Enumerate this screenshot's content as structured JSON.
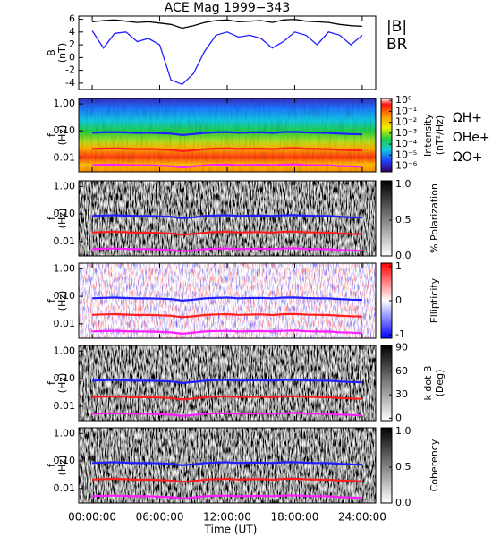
{
  "chart_data": [
    {
      "type": "line",
      "title": "ACE Mag 1999−343",
      "y_label": [
        "B",
        "(nT)"
      ],
      "x_label": "Time (UT)",
      "x": [
        0,
        1,
        2,
        3,
        4,
        5,
        6,
        7,
        8,
        9,
        10,
        11,
        12,
        13,
        14,
        15,
        16,
        17,
        18,
        19,
        20,
        21,
        22,
        23,
        24
      ],
      "xlim": [
        -1.2,
        25.2
      ],
      "xticks": [
        {
          "value": 0,
          "label": "00:00:00"
        },
        {
          "value": 6,
          "label": "06:00:00"
        },
        {
          "value": 12,
          "label": "12:00:00"
        },
        {
          "value": 18,
          "label": "18:00:00"
        },
        {
          "value": 24,
          "label": "24:00:00"
        }
      ],
      "ylim": [
        -5,
        6.5
      ],
      "yticks": [
        -4,
        -2,
        0,
        2,
        4,
        6
      ],
      "series": [
        {
          "name": "|B|",
          "color": "#000000",
          "values": [
            5.6,
            5.8,
            5.9,
            5.7,
            5.5,
            5.6,
            5.4,
            5.2,
            4.6,
            5.0,
            5.5,
            5.8,
            5.9,
            5.6,
            5.7,
            5.8,
            5.5,
            5.9,
            6.0,
            5.7,
            5.6,
            5.5,
            5.2,
            5.0,
            4.9
          ]
        },
        {
          "name": "BR",
          "color": "#1f1fff",
          "values": [
            4.2,
            1.5,
            3.8,
            4.0,
            2.5,
            3.0,
            2.0,
            -3.5,
            -4.2,
            -2.5,
            1.0,
            3.5,
            4.0,
            3.2,
            3.5,
            3.0,
            1.5,
            2.5,
            4.0,
            3.5,
            2.0,
            4.0,
            3.5,
            2.0,
            3.5
          ]
        }
      ]
    },
    {
      "type": "spectrogram",
      "y_label": [
        "f",
        "(Hz)"
      ],
      "log_y": true,
      "ylim": [
        0.003,
        1.6
      ],
      "yticks": [
        {
          "value": 1,
          "label": "1.00"
        },
        {
          "value": 0.1,
          "label": "0.10"
        },
        {
          "value": 0.01,
          "label": "0.01"
        }
      ],
      "colormap": "rainbow",
      "colorbar": {
        "label": [
          "Intensity",
          "(nT²/Hz)"
        ],
        "log": true,
        "lim": [
          3e-07,
          1.5
        ],
        "ticks": [
          {
            "value": 1,
            "label": "10⁰"
          },
          {
            "value": 0.1,
            "label": "10⁻¹"
          },
          {
            "value": 0.01,
            "label": "10⁻²"
          },
          {
            "value": 0.001,
            "label": "10⁻³"
          },
          {
            "value": 0.0001,
            "label": "10⁻⁴"
          },
          {
            "value": 1e-05,
            "label": "10⁻⁵"
          },
          {
            "value": 1e-06,
            "label": "10⁻⁶"
          }
        ]
      },
      "series": [
        {
          "name": "ΩH+",
          "color": "#1f1fff",
          "values": [
            0.085,
            0.088,
            0.09,
            0.087,
            0.084,
            0.085,
            0.082,
            0.079,
            0.07,
            0.076,
            0.084,
            0.088,
            0.09,
            0.085,
            0.087,
            0.088,
            0.084,
            0.09,
            0.091,
            0.087,
            0.085,
            0.084,
            0.079,
            0.076,
            0.074
          ]
        },
        {
          "name": "ΩHe+",
          "color": "#ff1f1f",
          "values": [
            0.0213,
            0.022,
            0.0225,
            0.0218,
            0.021,
            0.0213,
            0.0205,
            0.0198,
            0.0175,
            0.019,
            0.021,
            0.022,
            0.0225,
            0.0213,
            0.0218,
            0.022,
            0.021,
            0.0225,
            0.0228,
            0.0218,
            0.0213,
            0.021,
            0.0198,
            0.019,
            0.0185
          ]
        },
        {
          "name": "ΩO+",
          "color": "#ff1fff",
          "values": [
            0.0053,
            0.0055,
            0.0056,
            0.0054,
            0.0053,
            0.0053,
            0.0051,
            0.0049,
            0.0044,
            0.0048,
            0.0053,
            0.0055,
            0.0056,
            0.0053,
            0.0054,
            0.0055,
            0.0053,
            0.0056,
            0.0057,
            0.0054,
            0.0053,
            0.0053,
            0.0049,
            0.0048,
            0.0046
          ]
        }
      ]
    },
    {
      "type": "spectrogram",
      "y_label": [
        "f",
        "(Hz)"
      ],
      "log_y": true,
      "ylim": [
        0.003,
        1.6
      ],
      "yticks": [
        {
          "value": 1,
          "label": "1.00"
        },
        {
          "value": 0.1,
          "label": "0.10"
        },
        {
          "value": 0.01,
          "label": "0.01"
        }
      ],
      "colormap": "gray",
      "colorbar": {
        "label": [
          "% Polarization"
        ],
        "lim": [
          0,
          1.05
        ],
        "ticks": [
          {
            "value": 0,
            "label": "0.0"
          },
          {
            "value": 0.5,
            "label": "0.5"
          },
          {
            "value": 1,
            "label": "1.0"
          }
        ]
      }
    },
    {
      "type": "spectrogram",
      "y_label": [
        "f",
        "(Hz)"
      ],
      "log_y": true,
      "ylim": [
        0.003,
        1.6
      ],
      "yticks": [
        {
          "value": 1,
          "label": "1.00"
        },
        {
          "value": 0.1,
          "label": "0.10"
        },
        {
          "value": 0.01,
          "label": "0.01"
        }
      ],
      "colormap": "bwr",
      "colorbar": {
        "label": [
          "Ellipticity"
        ],
        "lim": [
          -1.1,
          1.1
        ],
        "ticks": [
          -1,
          0,
          1
        ]
      }
    },
    {
      "type": "spectrogram",
      "y_label": [
        "f",
        "(Hz)"
      ],
      "log_y": true,
      "ylim": [
        0.003,
        1.6
      ],
      "yticks": [
        {
          "value": 1,
          "label": "1.00"
        },
        {
          "value": 0.1,
          "label": "0.10"
        },
        {
          "value": 0.01,
          "label": "0.01"
        }
      ],
      "colormap": "gray",
      "colorbar": {
        "label": [
          "k dot B",
          "(Deg)"
        ],
        "lim": [
          -3,
          93
        ],
        "ticks": [
          0,
          30,
          60,
          90
        ]
      }
    },
    {
      "type": "spectrogram",
      "y_label": [
        "f",
        "(Hz)"
      ],
      "log_y": true,
      "ylim": [
        0.003,
        1.6
      ],
      "yticks": [
        {
          "value": 1,
          "label": "1.00"
        },
        {
          "value": 0.1,
          "label": "0.10"
        },
        {
          "value": 0.01,
          "label": "0.01"
        }
      ],
      "colormap": "gray",
      "colorbar": {
        "label": [
          "Coherency"
        ],
        "lim": [
          0,
          1.05
        ],
        "ticks": [
          {
            "value": 0,
            "label": "0.0"
          },
          {
            "value": 0.5,
            "label": "0.5"
          },
          {
            "value": 1,
            "label": "1.0"
          }
        ]
      }
    }
  ]
}
